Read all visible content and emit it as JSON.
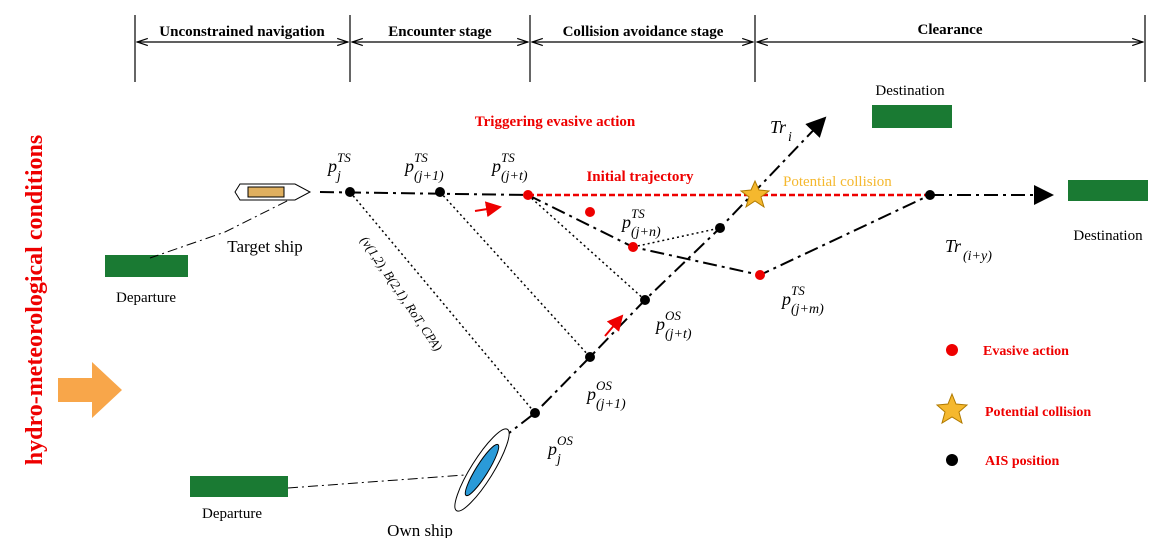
{
  "stages": [
    "Unconstrained navigation",
    "Encounter stage",
    "Collision avoidance stage",
    "Clearance"
  ],
  "side_label": "hydro-meteorological conditions",
  "annotations": {
    "trigger": "Triggering evasive action",
    "initial": "Initial trajectory",
    "collision": "Potential collision"
  },
  "places": {
    "destination_top": "Destination",
    "destination_right": "Destination",
    "departure_ts": "Departure",
    "departure_os": "Departure",
    "target_ship": "Target ship",
    "own_ship": "Own ship"
  },
  "factors": "(v(1,2), B(2,1), RoT, CPA)",
  "points": [
    {
      "base": "p",
      "sup": "TS",
      "sub": "j"
    },
    {
      "base": "p",
      "sup": "TS",
      "sub": "(j+1)"
    },
    {
      "base": "p",
      "sup": "TS",
      "sub": "(j+t)"
    },
    {
      "base": "p",
      "sup": "TS",
      "sub": "(j+n)"
    },
    {
      "base": "p",
      "sup": "TS",
      "sub": "(j+m)"
    },
    {
      "base": "p",
      "sup": "OS",
      "sub": "j"
    },
    {
      "base": "p",
      "sup": "OS",
      "sub": "(j+1)"
    },
    {
      "base": "p",
      "sup": "OS",
      "sub": "(j+t)"
    },
    {
      "base": "Tr",
      "sub": "i"
    },
    {
      "base": "Tr",
      "sub": "(i+y)"
    }
  ],
  "legend": [
    "Evasive action",
    "Potential collision",
    "AIS position"
  ]
}
